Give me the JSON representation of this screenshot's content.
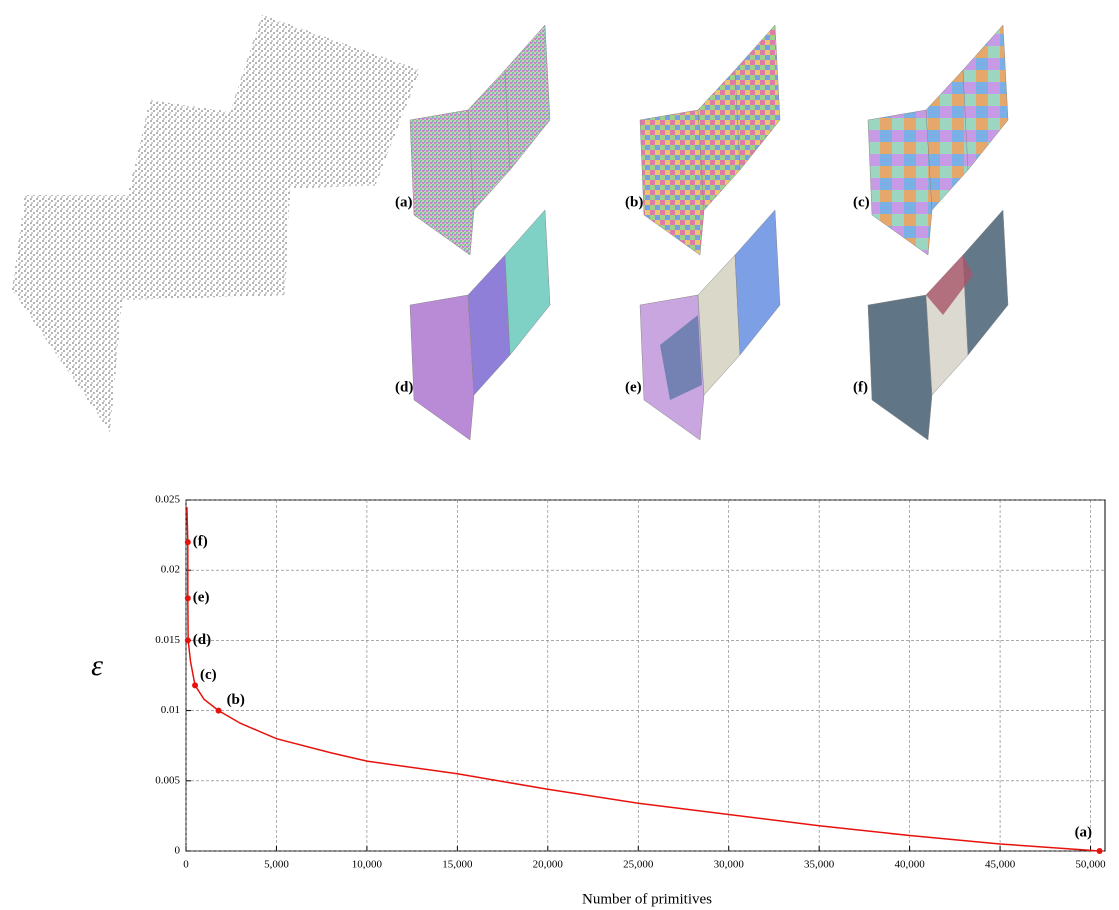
{
  "panels": [
    "(a)",
    "(b)",
    "(c)",
    "(d)",
    "(e)",
    "(f)"
  ],
  "chart_data": {
    "type": "line",
    "x_label": "Number of primitives",
    "y_label": "ε",
    "xlim": [
      0,
      50800
    ],
    "ylim": [
      0,
      0.025
    ],
    "xticks": [
      0,
      {
        "value": 5000,
        "label": "5,000"
      },
      {
        "value": 10000,
        "label": "10,000"
      },
      {
        "value": 15000,
        "label": "15,000"
      },
      {
        "value": 20000,
        "label": "20,000"
      },
      {
        "value": 25000,
        "label": "25,000"
      },
      {
        "value": 30000,
        "label": "30,000"
      },
      {
        "value": 35000,
        "label": "35,000"
      },
      {
        "value": 40000,
        "label": "40,000"
      },
      {
        "value": 45000,
        "label": "45,000"
      },
      {
        "value": 50000,
        "label": "50,000"
      }
    ],
    "yticks": [
      0,
      0.005,
      0.01,
      0.015,
      0.02,
      0.025
    ],
    "grid": true,
    "series": [
      {
        "color": "#e8120c",
        "x": [
          50,
          100,
          100,
          120,
          250,
          500,
          1000,
          1800,
          3000,
          5000,
          8000,
          10000,
          15000,
          20000,
          25000,
          30000,
          35000,
          40000,
          45000,
          50500
        ],
        "values": [
          0.0245,
          0.022,
          0.018,
          0.015,
          0.0135,
          0.0118,
          0.0108,
          0.01,
          0.0091,
          0.008,
          0.007,
          0.0064,
          0.0055,
          0.0044,
          0.0034,
          0.0026,
          0.0018,
          0.0011,
          0.0005,
          0
        ]
      }
    ],
    "points": {
      "color": "#e8120c",
      "x": [
        50500,
        1800,
        500,
        100,
        100,
        100
      ],
      "values": [
        0,
        0.01,
        0.0118,
        0.015,
        0.018,
        0.022
      ],
      "labels": [
        "(a)",
        "(b)",
        "(c)",
        "(d)",
        "(e)",
        "(f)"
      ]
    }
  }
}
